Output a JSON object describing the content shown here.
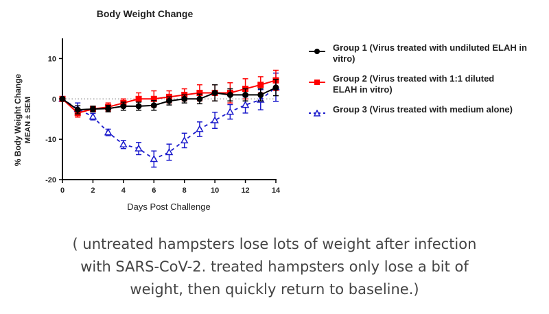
{
  "chart_data": {
    "type": "line",
    "title": "Body Weight Change",
    "xlabel": "Days Post Challenge",
    "ylabel": [
      "% Body Weight Change",
      "MEAN ± SEM"
    ],
    "xlim": [
      0,
      14
    ],
    "ylim": [
      -20,
      15
    ],
    "xticks": [
      0,
      2,
      4,
      6,
      8,
      10,
      12,
      14
    ],
    "yticks": [
      -20,
      -10,
      0,
      10
    ],
    "reference_line": 0,
    "legend_position": "right",
    "x": [
      0,
      1,
      2,
      3,
      4,
      5,
      6,
      7,
      8,
      9,
      10,
      11,
      12,
      13,
      14
    ],
    "series": [
      {
        "name": "Group 1 (Virus treated with undiluted ELAH in vitro)",
        "color": "#000000",
        "marker": "circle",
        "dash": "solid",
        "values": [
          0,
          -2.7,
          -2.5,
          -2.4,
          -1.8,
          -1.8,
          -1.6,
          -0.5,
          0,
          0,
          1.5,
          1,
          1,
          1,
          2.8
        ],
        "sem": [
          0.3,
          1,
          0.7,
          0.8,
          1,
          1,
          1.2,
          1,
          1,
          1.2,
          2,
          1.5,
          1.5,
          1.5,
          2
        ]
      },
      {
        "name": "Group 2 (Virus treated with 1:1 diluted ELAH in vitro)",
        "color": "#ff0000",
        "marker": "square",
        "dash": "solid",
        "values": [
          0,
          -3.5,
          -2.5,
          -2,
          -1,
          0,
          0,
          0.5,
          1,
          1.5,
          1.5,
          1.5,
          2.5,
          3.5,
          4.6
        ],
        "sem": [
          0.3,
          1,
          0.7,
          1,
          1,
          1.5,
          2,
          1.5,
          1.5,
          2,
          2,
          2.5,
          2.5,
          2,
          2.5
        ]
      },
      {
        "name": "Group 3 (Virus treated with medium alone)",
        "color": "#1a1acc",
        "marker": "triangle-open",
        "dash": "dashed",
        "values": [
          0,
          -2.5,
          -4.4,
          -8.3,
          -11.3,
          -12.3,
          -14.9,
          -13.2,
          -10.3,
          -7.5,
          -5.3,
          -3.2,
          -1.5,
          -0.2,
          2.9
        ],
        "sem": [
          0.3,
          1.5,
          0.8,
          0.8,
          1,
          1.5,
          2,
          2,
          1.8,
          1.8,
          2,
          1.8,
          2,
          2.5,
          3.5
        ]
      }
    ]
  },
  "caption": [
    "( untreated hampsters lose lots of weight after infection",
    "with SARS-CoV-2. treated hampsters only lose a bit of",
    "weight, then quickly return to baseline.)"
  ]
}
